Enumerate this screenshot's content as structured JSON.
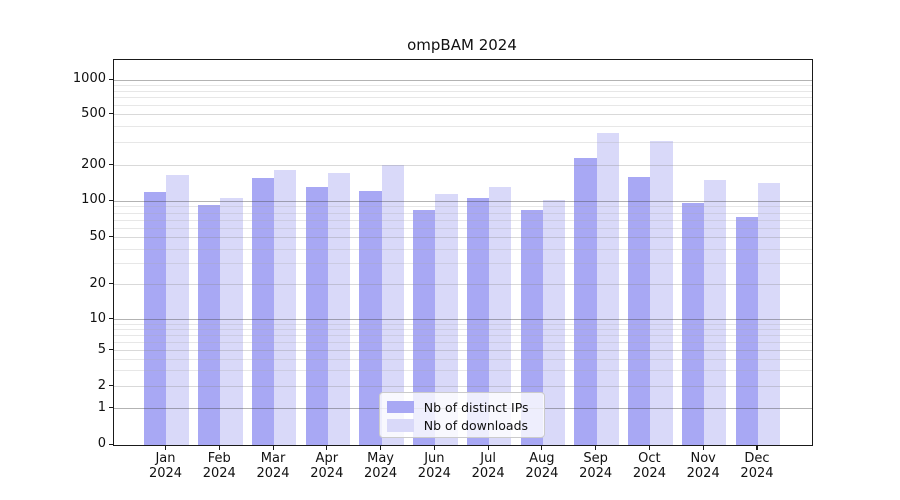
{
  "title": "ompBAM 2024",
  "chart_data": {
    "type": "bar",
    "title": "ompBAM 2024",
    "categories": [
      "Jan 2024",
      "Feb 2024",
      "Mar 2024",
      "Apr 2024",
      "May 2024",
      "Jun 2024",
      "Jul 2024",
      "Aug 2024",
      "Sep 2024",
      "Oct 2024",
      "Nov 2024",
      "Dec 2024"
    ],
    "series": [
      {
        "name": "Nb of distinct IPs",
        "color": "#a8a8f4",
        "values": [
          120,
          94,
          157,
          132,
          122,
          85,
          107,
          85,
          230,
          159,
          97,
          74
        ]
      },
      {
        "name": "Nb of downloads",
        "color": "#d9d9f9",
        "values": [
          165,
          106,
          183,
          172,
          202,
          115,
          131,
          103,
          360,
          310,
          152,
          143
        ]
      }
    ],
    "xlabel": "",
    "ylabel": "",
    "yaxis": {
      "scale": "log-like (symlog with 0)",
      "ticks": [
        0,
        1,
        2,
        5,
        10,
        20,
        50,
        100,
        200,
        500,
        1000
      ],
      "minor_ticks": [
        3,
        4,
        6,
        7,
        8,
        9,
        30,
        40,
        60,
        70,
        80,
        90,
        300,
        400,
        600,
        700,
        800,
        900
      ],
      "ylim": [
        0,
        1500
      ]
    },
    "grid": true,
    "legend_position": "lower center"
  }
}
